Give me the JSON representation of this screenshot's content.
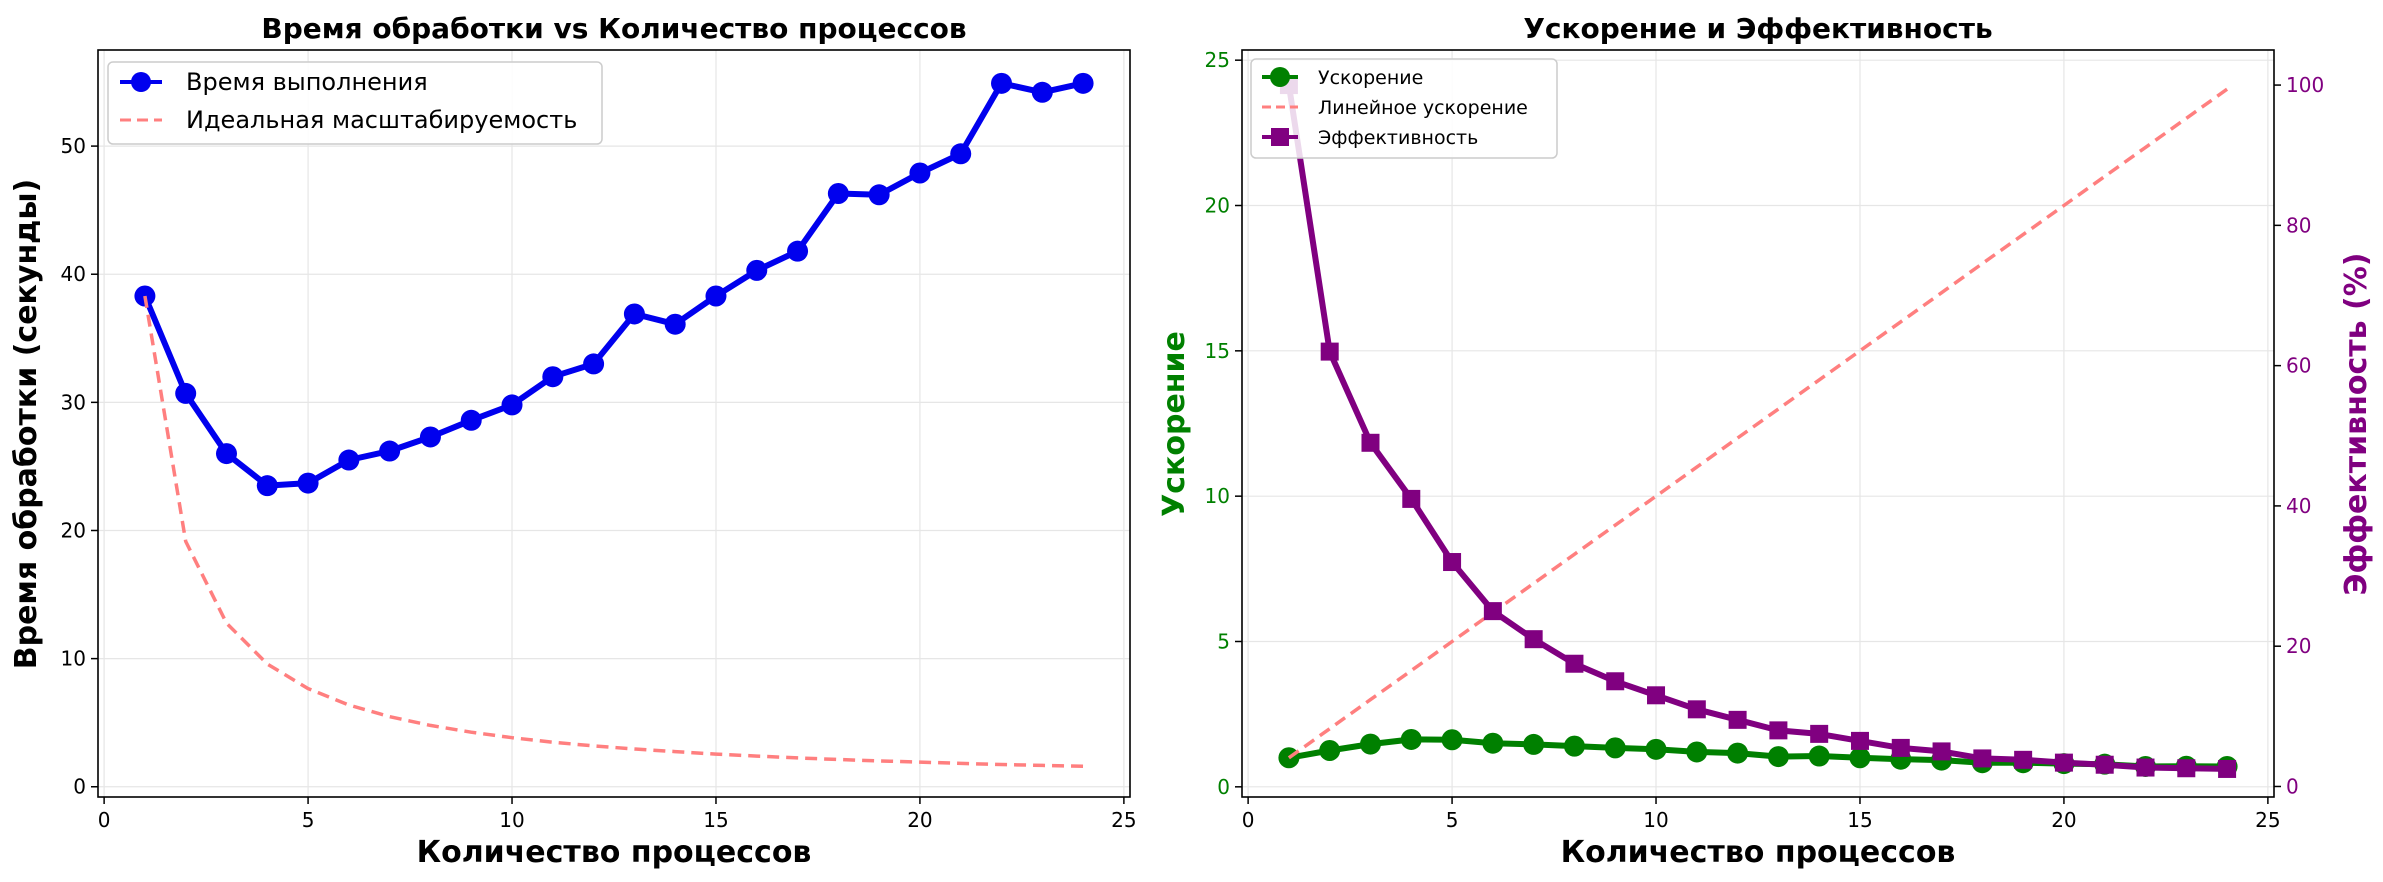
{
  "chart_data": [
    {
      "type": "line",
      "title": "Время обработки vs Количество процессов",
      "xlabel": "Количество процессов",
      "ylabel": "Время обработки (секунды)",
      "xlim": [
        -0.15,
        25.15
      ],
      "ylim": [
        -0.8,
        57.5
      ],
      "xticks": [
        0,
        5,
        10,
        15,
        20,
        25
      ],
      "yticks": [
        0,
        10,
        20,
        30,
        40,
        50
      ],
      "grid": true,
      "legend": "upper-left",
      "x": [
        1,
        2,
        3,
        4,
        5,
        6,
        7,
        8,
        9,
        10,
        11,
        12,
        13,
        14,
        15,
        16,
        17,
        18,
        19,
        20,
        21,
        22,
        23,
        24
      ],
      "series": [
        {
          "name": "Время выполнения",
          "color": "#0000ee",
          "style": "solid-marker-circle",
          "values": [
            38.3,
            30.7,
            26.0,
            23.5,
            23.7,
            25.5,
            26.2,
            27.3,
            28.6,
            29.8,
            32.0,
            33.0,
            36.9,
            36.1,
            38.3,
            40.3,
            41.8,
            46.3,
            46.2,
            47.9,
            49.4,
            54.9,
            54.2,
            54.9
          ]
        },
        {
          "name": "Идеальная масштабируемость",
          "color": "#ff7f7f",
          "style": "dashed",
          "values": [
            38.3,
            19.15,
            12.77,
            9.58,
            7.66,
            6.38,
            5.47,
            4.79,
            4.26,
            3.83,
            3.48,
            3.19,
            2.95,
            2.74,
            2.55,
            2.39,
            2.25,
            2.13,
            2.02,
            1.92,
            1.82,
            1.74,
            1.67,
            1.6
          ]
        }
      ]
    },
    {
      "type": "line",
      "title": "Ускорение и Эффективность",
      "xlabel": "Количество процессов",
      "ylabel": "Ускорение",
      "ylabel_right": "Эффективность (%)",
      "xlim": [
        -0.15,
        25.15
      ],
      "ylim": [
        -0.35,
        25.35
      ],
      "ylim_right": [
        -1.5,
        105
      ],
      "xticks": [
        0,
        5,
        10,
        15,
        20,
        25
      ],
      "yticks": [
        0,
        5,
        10,
        15,
        20,
        25
      ],
      "yticks_right": [
        0,
        20,
        40,
        60,
        80,
        100
      ],
      "left_axis_color": "#008000",
      "right_axis_color": "#800080",
      "grid": true,
      "legend": "upper-left",
      "x": [
        1,
        2,
        3,
        4,
        5,
        6,
        7,
        8,
        9,
        10,
        11,
        12,
        13,
        14,
        15,
        16,
        17,
        18,
        19,
        20,
        21,
        22,
        23,
        24
      ],
      "series": [
        {
          "name": "Ускорение",
          "axis": "left",
          "color": "#008000",
          "style": "solid-marker-circle",
          "values": [
            1.0,
            1.25,
            1.47,
            1.63,
            1.62,
            1.5,
            1.46,
            1.4,
            1.34,
            1.29,
            1.2,
            1.16,
            1.04,
            1.06,
            1.0,
            0.95,
            0.92,
            0.83,
            0.83,
            0.8,
            0.78,
            0.7,
            0.71,
            0.7
          ]
        },
        {
          "name": "Линейное ускорение",
          "axis": "left",
          "color": "#ff7f7f",
          "style": "dashed",
          "values": [
            1,
            2,
            3,
            4,
            5,
            6,
            7,
            8,
            9,
            10,
            11,
            12,
            13,
            14,
            15,
            16,
            17,
            18,
            19,
            20,
            21,
            22,
            23,
            24
          ]
        },
        {
          "name": "Эффективность",
          "axis": "right",
          "color": "#800080",
          "style": "solid-marker-square",
          "values": [
            100,
            62,
            49,
            41,
            32,
            25,
            21,
            17.5,
            15,
            13,
            11,
            9.5,
            8,
            7.5,
            6.5,
            5.5,
            5,
            4,
            3.8,
            3.4,
            3.1,
            2.7,
            2.6,
            2.5
          ]
        }
      ]
    }
  ]
}
